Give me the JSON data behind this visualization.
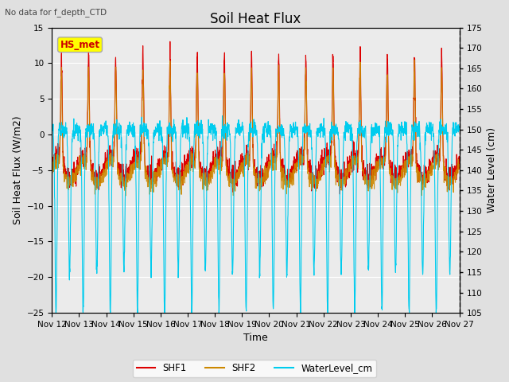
{
  "title": "Soil Heat Flux",
  "subtitle": "No data for f_depth_CTD",
  "xlabel": "Time",
  "ylabel_left": "Soil Heat Flux (W/m2)",
  "ylabel_right": "Water Level (cm)",
  "ylim_left": [
    -25,
    15
  ],
  "ylim_right": [
    105,
    175
  ],
  "legend_box_label": "HS_met",
  "legend_box_color": "#ffff00",
  "legend_box_edgecolor": "#aaaaaa",
  "legend_items": [
    {
      "label": "SHF1",
      "color": "#dd0000"
    },
    {
      "label": "SHF2",
      "color": "#cc8800"
    },
    {
      "label": "WaterLevel_cm",
      "color": "#00ccee"
    }
  ],
  "xtick_labels": [
    "Nov 12",
    "Nov 13",
    "Nov 14",
    "Nov 15",
    "Nov 16",
    "Nov 17",
    "Nov 18",
    "Nov 19",
    "Nov 20",
    "Nov 21",
    "Nov 22",
    "Nov 23",
    "Nov 24",
    "Nov 25",
    "Nov 26",
    "Nov 27"
  ],
  "background_color": "#e0e0e0",
  "plot_bg_color": "#ebebeb",
  "title_fontsize": 12,
  "axis_fontsize": 9,
  "tick_fontsize": 7.5
}
